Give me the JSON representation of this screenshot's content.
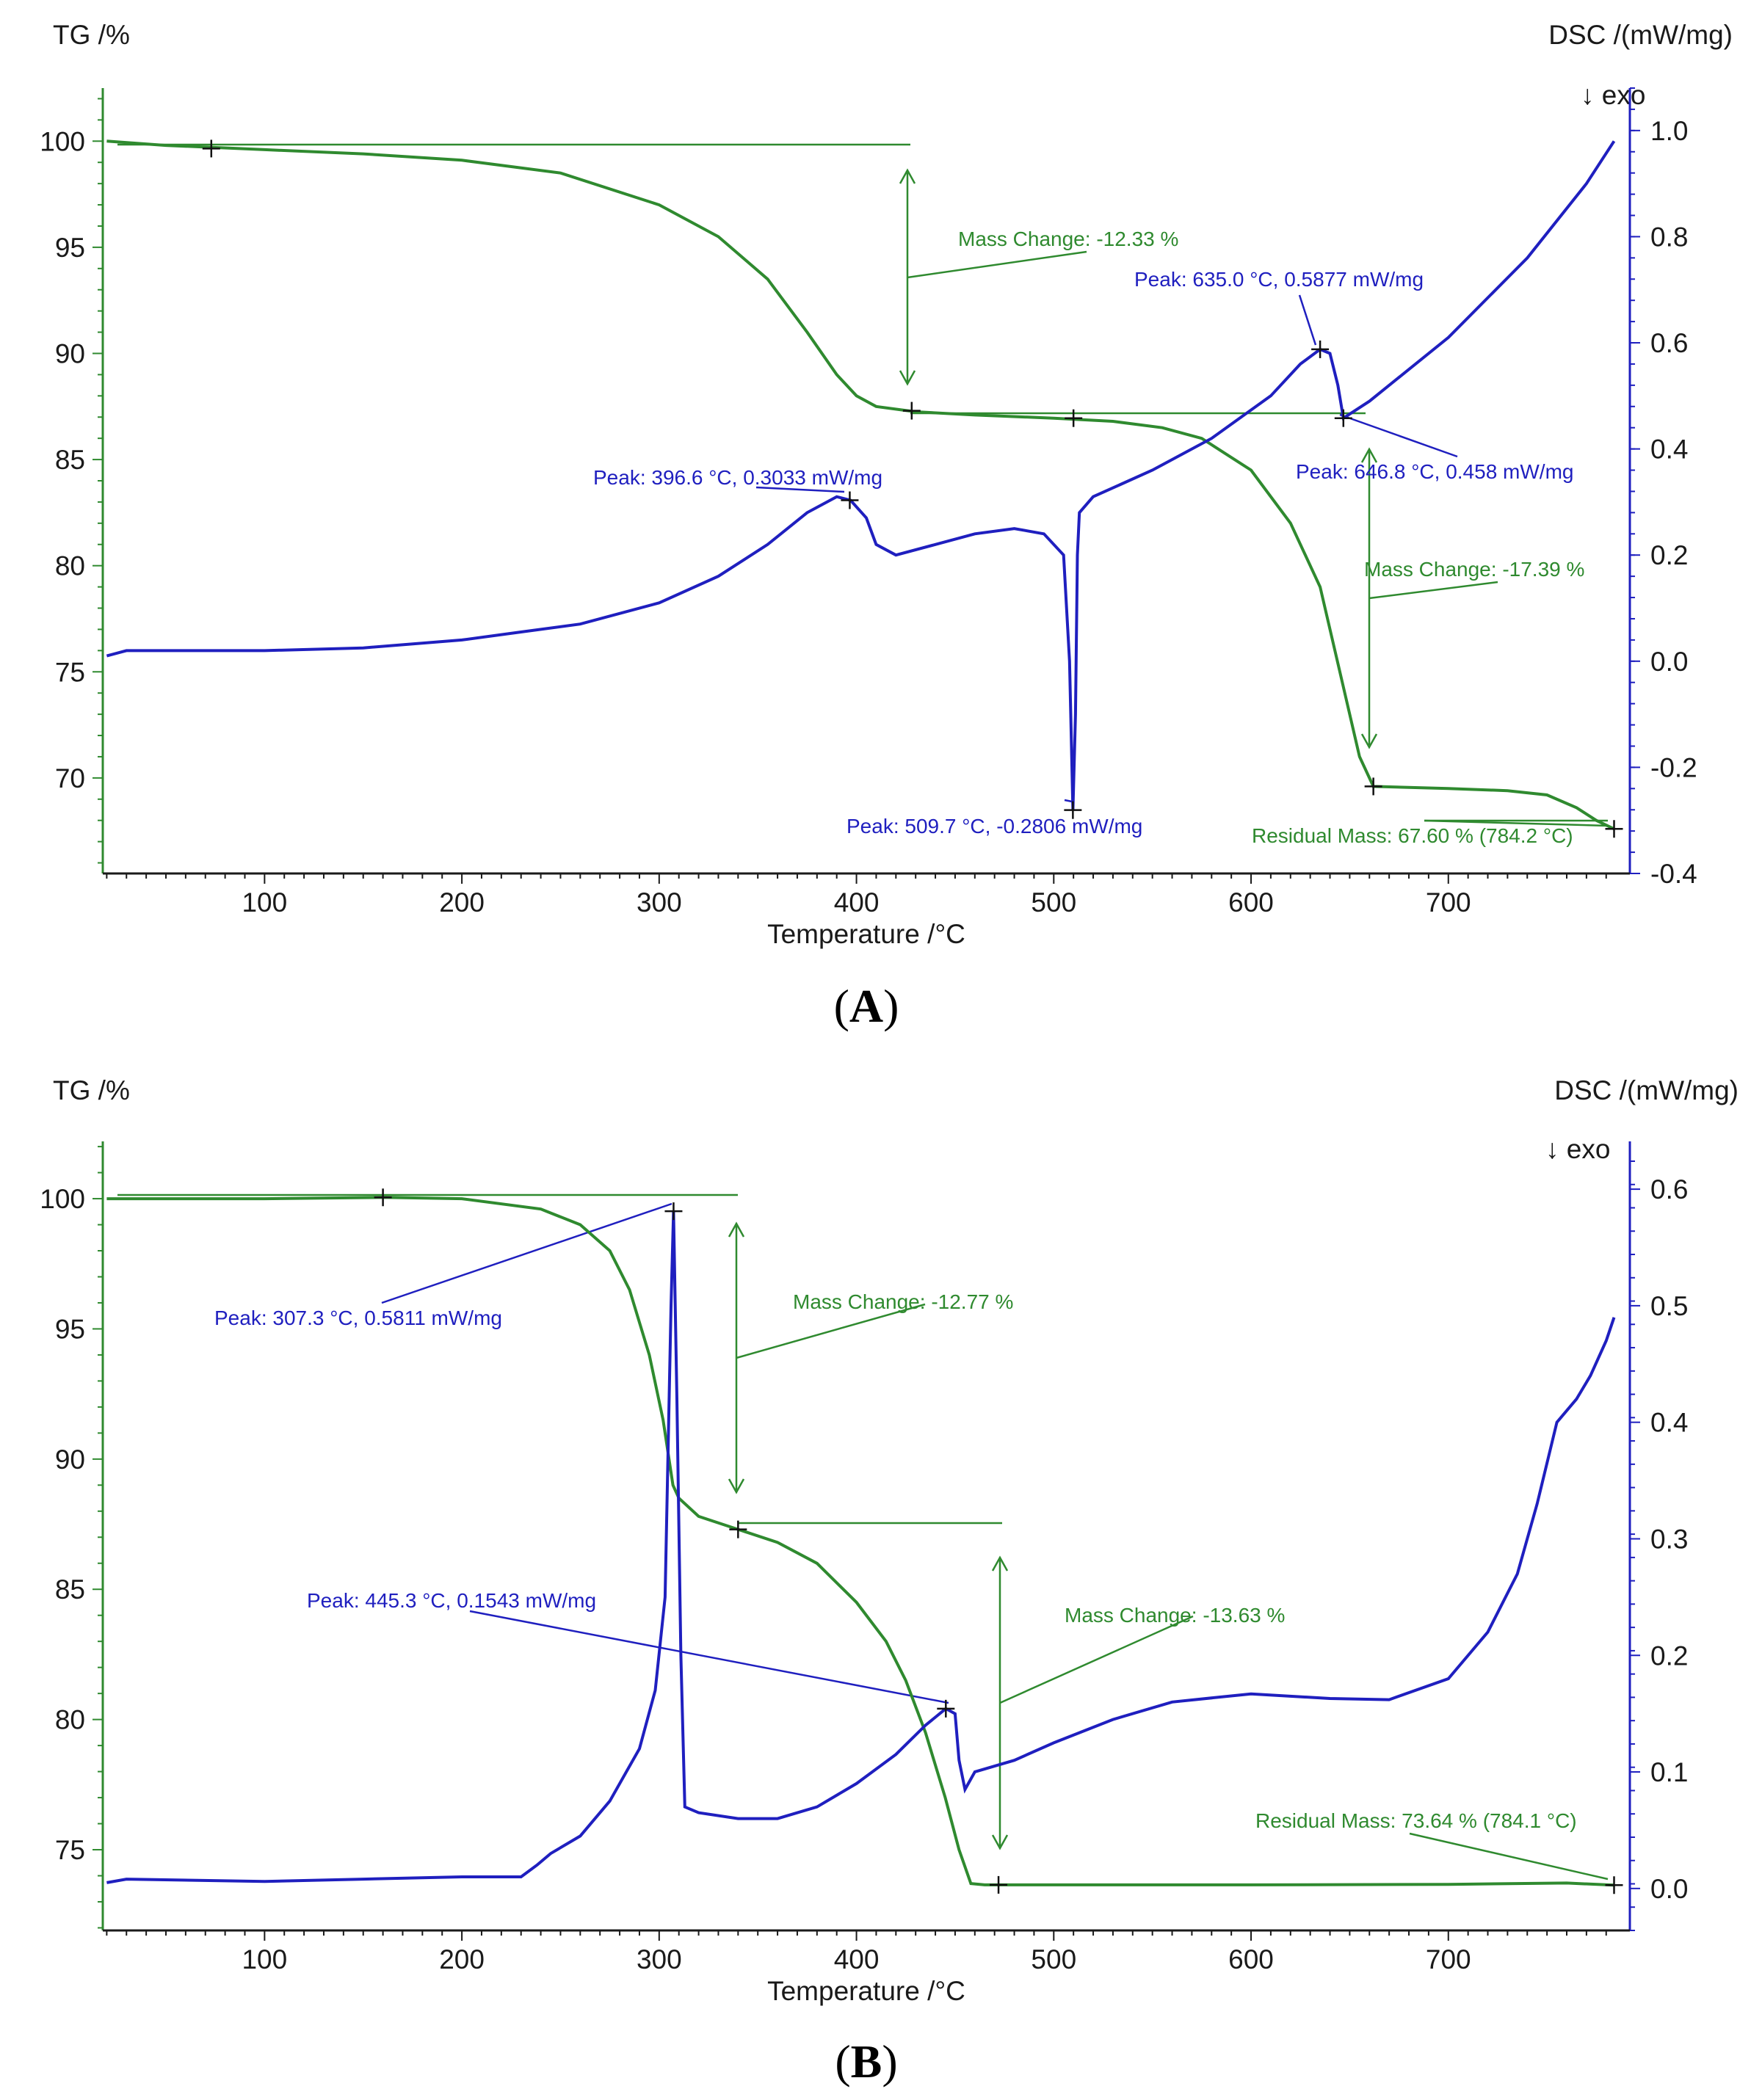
{
  "colors": {
    "tg": "#2f8a2f",
    "dsc": "#1f1fbf",
    "axis_tg": "#2f8a2f",
    "axis_dsc": "#1f1fbf",
    "text": "#1a1a1a"
  },
  "chart_data": [
    {
      "type": "line",
      "panel": "A",
      "panel_label": "A",
      "xlabel": "Temperature /°C",
      "ylabel_left": "TG /%",
      "ylabel_right": "DSC /(mW/mg)",
      "exo_label": "↓ exo",
      "xlim": [
        18,
        792
      ],
      "xticks": [
        100,
        200,
        300,
        400,
        500,
        600,
        700
      ],
      "ylim_left": [
        65.5,
        102.5
      ],
      "yticks_left": [
        70,
        75,
        80,
        85,
        90,
        95,
        100
      ],
      "ylim_right": [
        -0.4,
        1.08
      ],
      "yticks_right": [
        -0.4,
        -0.2,
        0.0,
        0.2,
        0.4,
        0.6,
        0.8,
        1.0
      ],
      "yticks_right_labels": [
        "-0.4",
        "-0.2",
        "0.0",
        "0.2",
        "0.4",
        "0.6",
        "0.8",
        "1.0"
      ],
      "series": [
        {
          "name": "TG",
          "axis": "left",
          "points": [
            [
              20,
              100
            ],
            [
              50,
              99.8
            ],
            [
              100,
              99.6
            ],
            [
              150,
              99.4
            ],
            [
              200,
              99.1
            ],
            [
              250,
              98.5
            ],
            [
              300,
              97
            ],
            [
              330,
              95.5
            ],
            [
              355,
              93.5
            ],
            [
              375,
              91
            ],
            [
              390,
              89
            ],
            [
              400,
              88
            ],
            [
              410,
              87.5
            ],
            [
              430,
              87.25
            ],
            [
              460,
              87.1
            ],
            [
              500,
              86.95
            ],
            [
              530,
              86.8
            ],
            [
              555,
              86.5
            ],
            [
              575,
              86
            ],
            [
              600,
              84.5
            ],
            [
              620,
              82
            ],
            [
              635,
              79
            ],
            [
              645,
              75
            ],
            [
              655,
              71
            ],
            [
              662,
              69.6
            ],
            [
              700,
              69.5
            ],
            [
              730,
              69.4
            ],
            [
              750,
              69.2
            ],
            [
              765,
              68.6
            ],
            [
              775,
              68
            ],
            [
              784,
              67.6
            ]
          ]
        },
        {
          "name": "DSC",
          "axis": "right",
          "points": [
            [
              20,
              0.01
            ],
            [
              30,
              0.02
            ],
            [
              100,
              0.02
            ],
            [
              150,
              0.025
            ],
            [
              200,
              0.04
            ],
            [
              230,
              0.055
            ],
            [
              260,
              0.07
            ],
            [
              300,
              0.11
            ],
            [
              330,
              0.16
            ],
            [
              355,
              0.22
            ],
            [
              375,
              0.28
            ],
            [
              390,
              0.31
            ],
            [
              397,
              0.3033
            ],
            [
              405,
              0.27
            ],
            [
              410,
              0.22
            ],
            [
              420,
              0.2
            ],
            [
              440,
              0.22
            ],
            [
              460,
              0.24
            ],
            [
              480,
              0.25
            ],
            [
              495,
              0.24
            ],
            [
              505,
              0.2
            ],
            [
              508,
              0.0
            ],
            [
              509.7,
              -0.2806
            ],
            [
              511,
              -0.1
            ],
            [
              512,
              0.2
            ],
            [
              513,
              0.28
            ],
            [
              520,
              0.31
            ],
            [
              550,
              0.36
            ],
            [
              580,
              0.42
            ],
            [
              610,
              0.5
            ],
            [
              625,
              0.56
            ],
            [
              635,
              0.5877
            ],
            [
              640,
              0.58
            ],
            [
              644,
              0.52
            ],
            [
              646.8,
              0.458
            ],
            [
              660,
              0.49
            ],
            [
              700,
              0.61
            ],
            [
              740,
              0.76
            ],
            [
              770,
              0.9
            ],
            [
              784,
              0.98
            ]
          ]
        }
      ],
      "annotations": [
        {
          "text": "Mass Change: -12.33 %",
          "color": "green"
        },
        {
          "text": "Mass Change: -17.39 %",
          "color": "green"
        },
        {
          "text": "Residual Mass: 67.60 % (784.2 °C)",
          "color": "green"
        },
        {
          "text": "Peak: 396.6 °C, 0.3033 mW/mg",
          "color": "blue"
        },
        {
          "text": "Peak: 509.7 °C, -0.2806 mW/mg",
          "color": "blue"
        },
        {
          "text": "Peak: 635.0 °C, 0.5877 mW/mg",
          "color": "blue"
        },
        {
          "text": "Peak: 646.8 °C, 0.458 mW/mg",
          "color": "blue"
        }
      ]
    },
    {
      "type": "line",
      "panel": "B",
      "panel_label": "B",
      "xlabel": "Temperature /°C",
      "ylabel_left": "TG /%",
      "ylabel_right": "DSC /(mW/mg)",
      "exo_label": "↓ exo",
      "xlim": [
        18,
        792
      ],
      "xticks": [
        100,
        200,
        300,
        400,
        500,
        600,
        700
      ],
      "ylim_left": [
        71.9,
        102.2
      ],
      "yticks_left": [
        75,
        80,
        85,
        90,
        95,
        100
      ],
      "ylim_right": [
        -0.036,
        0.641
      ],
      "yticks_right": [
        0.0,
        0.1,
        0.2,
        0.3,
        0.4,
        0.5,
        0.6
      ],
      "yticks_right_labels": [
        "0.0",
        "0.1",
        "0.2",
        "0.3",
        "0.4",
        "0.5",
        "0.6"
      ],
      "series": [
        {
          "name": "TG",
          "axis": "left",
          "points": [
            [
              20,
              100
            ],
            [
              100,
              100
            ],
            [
              160,
              100.05
            ],
            [
              200,
              100
            ],
            [
              240,
              99.6
            ],
            [
              260,
              99
            ],
            [
              275,
              98
            ],
            [
              285,
              96.5
            ],
            [
              295,
              94
            ],
            [
              302,
              91.5
            ],
            [
              307,
              89
            ],
            [
              310,
              88.5
            ],
            [
              320,
              87.8
            ],
            [
              340,
              87.3
            ],
            [
              360,
              86.8
            ],
            [
              380,
              86
            ],
            [
              400,
              84.5
            ],
            [
              415,
              83
            ],
            [
              425,
              81.5
            ],
            [
              435,
              79.5
            ],
            [
              445,
              77
            ],
            [
              452,
              75
            ],
            [
              458,
              73.7
            ],
            [
              465,
              73.65
            ],
            [
              500,
              73.65
            ],
            [
              600,
              73.65
            ],
            [
              700,
              73.67
            ],
            [
              760,
              73.72
            ],
            [
              784,
              73.64
            ]
          ]
        },
        {
          "name": "DSC",
          "axis": "right",
          "points": [
            [
              20,
              0.005
            ],
            [
              30,
              0.008
            ],
            [
              100,
              0.006
            ],
            [
              150,
              0.008
            ],
            [
              200,
              0.01
            ],
            [
              230,
              0.01
            ],
            [
              238,
              0.02
            ],
            [
              245,
              0.03
            ],
            [
              260,
              0.045
            ],
            [
              275,
              0.075
            ],
            [
              290,
              0.12
            ],
            [
              298,
              0.17
            ],
            [
              303,
              0.25
            ],
            [
              306,
              0.5
            ],
            [
              307.3,
              0.5811
            ],
            [
              309,
              0.42
            ],
            [
              311,
              0.2
            ],
            [
              313,
              0.07
            ],
            [
              320,
              0.065
            ],
            [
              340,
              0.06
            ],
            [
              360,
              0.06
            ],
            [
              380,
              0.07
            ],
            [
              400,
              0.09
            ],
            [
              420,
              0.115
            ],
            [
              435,
              0.14
            ],
            [
              445.3,
              0.1543
            ],
            [
              450,
              0.15
            ],
            [
              452,
              0.11
            ],
            [
              455,
              0.085
            ],
            [
              460,
              0.1
            ],
            [
              470,
              0.105
            ],
            [
              480,
              0.11
            ],
            [
              500,
              0.125
            ],
            [
              530,
              0.145
            ],
            [
              560,
              0.16
            ],
            [
              600,
              0.167
            ],
            [
              640,
              0.163
            ],
            [
              670,
              0.162
            ],
            [
              700,
              0.18
            ],
            [
              720,
              0.22
            ],
            [
              735,
              0.27
            ],
            [
              745,
              0.33
            ],
            [
              755,
              0.4
            ],
            [
              765,
              0.42
            ],
            [
              772,
              0.44
            ],
            [
              780,
              0.47
            ],
            [
              784,
              0.49
            ]
          ]
        }
      ],
      "annotations": [
        {
          "text": "Mass Change: -12.77 %",
          "color": "green"
        },
        {
          "text": "Mass Change: -13.63 %",
          "color": "green"
        },
        {
          "text": "Residual Mass: 73.64 % (784.1 °C)",
          "color": "green"
        },
        {
          "text": "Peak: 307.3 °C, 0.5811 mW/mg",
          "color": "blue"
        },
        {
          "text": "Peak: 445.3 °C, 0.1543 mW/mg",
          "color": "blue"
        }
      ]
    }
  ]
}
